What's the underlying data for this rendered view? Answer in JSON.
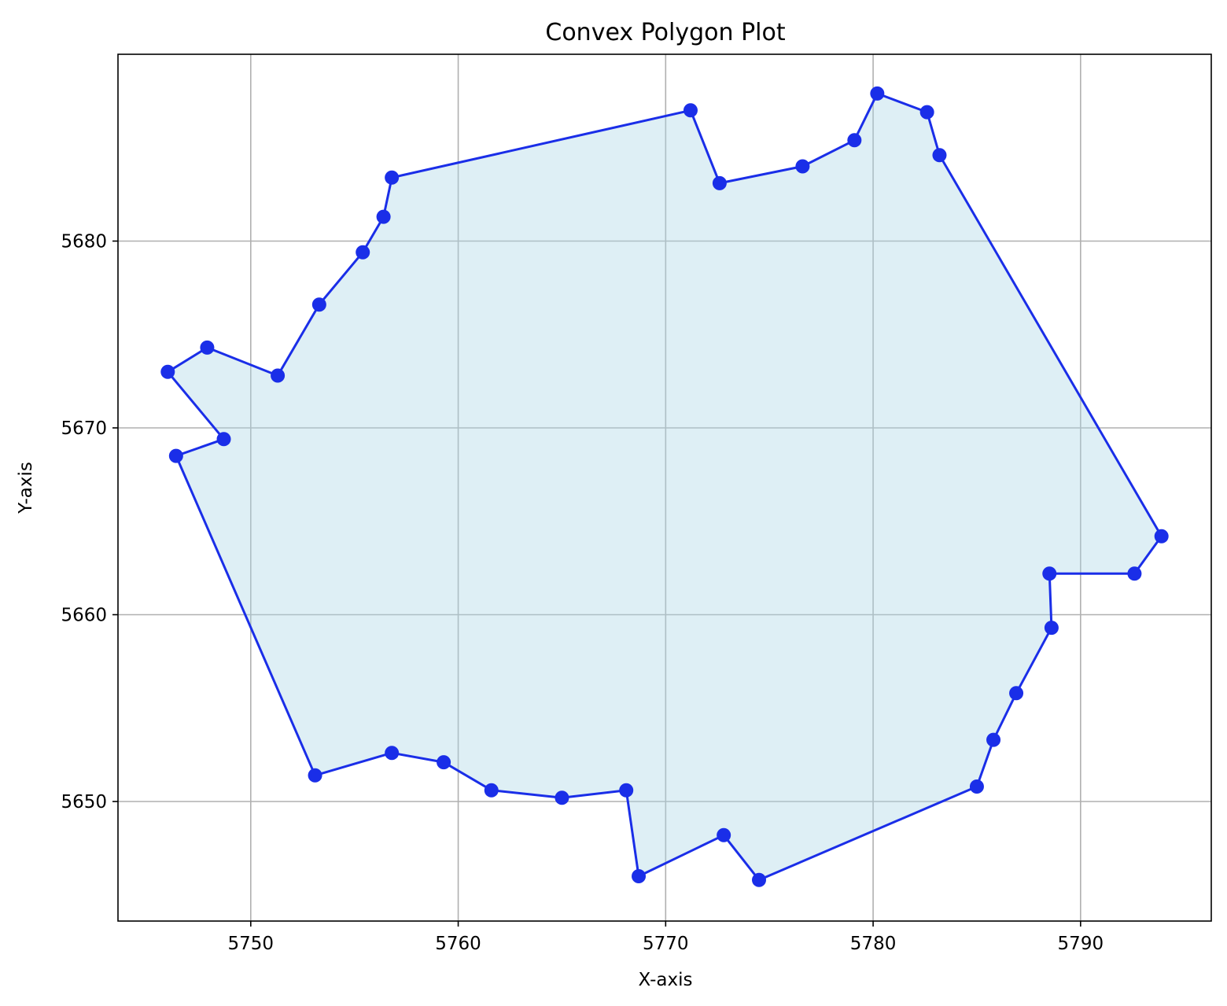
{
  "chart_data": {
    "type": "line",
    "title": "Convex Polygon Plot",
    "xlabel": "X-axis",
    "ylabel": "Y-axis",
    "xlim": [
      5743.6,
      5796.3
    ],
    "ylim": [
      5643.6,
      5690.0
    ],
    "xticks": [
      5750,
      5760,
      5770,
      5780,
      5790
    ],
    "yticks": [
      5650,
      5660,
      5670,
      5680
    ],
    "grid": true,
    "closed": true,
    "colors": {
      "line": "#1a2ee8",
      "fill": "#add8e6",
      "marker": "#1a2ee8",
      "grid": "#b0b0b0"
    },
    "x": [
      5746.0,
      5747.9,
      5751.3,
      5753.3,
      5755.4,
      5756.4,
      5756.8,
      5771.2,
      5772.6,
      5776.6,
      5779.1,
      5780.2,
      5782.6,
      5783.2,
      5793.9,
      5792.6,
      5788.5,
      5788.6,
      5786.9,
      5785.8,
      5785.0,
      5774.5,
      5772.8,
      5768.7,
      5768.1,
      5765.0,
      5761.6,
      5759.3,
      5756.8,
      5753.1,
      5746.4,
      5748.7
    ],
    "y": [
      5673.0,
      5674.3,
      5672.8,
      5676.6,
      5679.4,
      5681.3,
      5683.4,
      5687.0,
      5683.1,
      5684.0,
      5685.4,
      5687.9,
      5686.9,
      5684.6,
      5664.2,
      5662.2,
      5662.2,
      5659.3,
      5655.8,
      5653.3,
      5650.8,
      5645.8,
      5648.2,
      5646.0,
      5650.6,
      5650.2,
      5650.6,
      5652.1,
      5652.6,
      5651.4,
      5668.5,
      5669.4
    ]
  }
}
